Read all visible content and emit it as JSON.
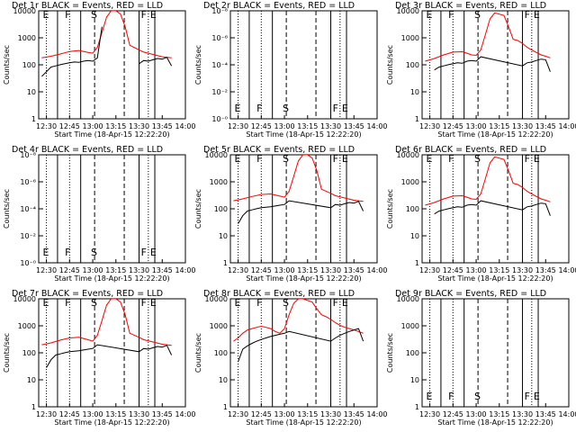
{
  "chart_data": [
    {
      "type": "line",
      "title": "Det 1r BLACK = Events, RED = LLD",
      "xlabel": "Start Time (18-Apr-15 12:22:20)",
      "ylabel": "Counts/sec",
      "x_ticks": [
        "12:30",
        "12:45",
        "13:00",
        "13:15",
        "13:30",
        "13:45",
        "14:00"
      ],
      "y_ticks": [
        "1",
        "10",
        "100",
        "1000",
        "10000"
      ],
      "ylim": [
        1,
        12000
      ],
      "scale": "log",
      "markers": [
        "E",
        "F",
        "S",
        "F",
        "E"
      ],
      "series": [
        {
          "name": "LLD",
          "color": "#ff0000",
          "x": [
            12.45,
            12.55,
            12.65,
            12.75,
            12.85,
            12.95,
            13.0,
            13.05,
            13.1,
            13.15,
            13.2,
            13.25,
            13.3,
            13.35,
            13.4,
            13.5,
            13.55,
            13.65,
            13.75,
            13.85
          ],
          "y": [
            200,
            230,
            280,
            350,
            380,
            320,
            300,
            500,
            1800,
            7000,
            12000,
            12000,
            9000,
            3000,
            600,
            400,
            330,
            270,
            220,
            200
          ]
        },
        {
          "name": "Events",
          "color": "#000000",
          "x": [
            12.45,
            12.5,
            12.55,
            12.6,
            12.65,
            12.7,
            12.75,
            12.8,
            12.85,
            12.9,
            12.95,
            13.0,
            13.05,
            13.1,
            13.15,
            13.2,
            13.25,
            13.3,
            13.35,
            13.4,
            13.45,
            13.5,
            13.55,
            13.6,
            13.65,
            13.7,
            13.75,
            13.8,
            13.85
          ],
          "y": [
            40,
            60,
            90,
            100,
            110,
            120,
            130,
            140,
            135,
            150,
            160,
            150,
            200,
            3000,
            null,
            null,
            null,
            null,
            null,
            null,
            null,
            120,
            160,
            150,
            170,
            190,
            180,
            210,
            100
          ]
        }
      ]
    },
    {
      "type": "line",
      "title": "Det 2r BLACK = Events, RED = LLD",
      "xlabel": "Start Time (18-Apr-15 12:22:20)",
      "ylabel": "Counts/sec",
      "x_ticks": [
        "12:30",
        "12:45",
        "13:00",
        "13:15",
        "13:30",
        "13:45",
        "14:00"
      ],
      "y_ticks": [
        "10⁻⁰",
        "10⁻²",
        "10⁻⁴",
        "10⁻⁶",
        "10⁻⁸"
      ],
      "scale": "log",
      "markers": [
        "E",
        "F",
        "S",
        "F",
        "E"
      ],
      "series": []
    },
    {
      "type": "line",
      "title": "Det 3r BLACK = Events, RED = LLD",
      "xlabel": "Start Time (18-Apr-15 12:22:20)",
      "ylabel": "Counts/sec",
      "x_ticks": [
        "12:30",
        "12:45",
        "13:00",
        "13:15",
        "13:30",
        "13:45",
        "14:00"
      ],
      "y_ticks": [
        "1",
        "10",
        "100",
        "1000",
        "10000"
      ],
      "ylim": [
        1,
        12000
      ],
      "scale": "log",
      "markers": [
        "E",
        "F",
        "S",
        "F",
        "E"
      ],
      "series": [
        {
          "name": "LLD",
          "color": "#ff0000",
          "x": [
            12.45,
            12.55,
            12.65,
            12.75,
            12.85,
            12.9,
            12.95,
            13.0,
            13.05,
            13.1,
            13.15,
            13.2,
            13.3,
            13.35,
            13.4,
            13.45,
            13.5,
            13.55,
            13.6,
            13.65,
            13.7,
            13.75,
            13.8
          ],
          "y": [
            150,
            190,
            260,
            330,
            340,
            300,
            260,
            250,
            400,
            1500,
            6000,
            10000,
            8000,
            3000,
            1000,
            900,
            700,
            500,
            400,
            320,
            260,
            230,
            200
          ]
        },
        {
          "name": "Events",
          "color": "#000000",
          "x": [
            12.55,
            12.6,
            12.65,
            12.7,
            12.75,
            12.8,
            12.85,
            12.9,
            12.95,
            13.0,
            13.05,
            13.5,
            13.55,
            13.6,
            13.65,
            13.7,
            13.75,
            13.8
          ],
          "y": [
            70,
            90,
            100,
            110,
            120,
            130,
            125,
            150,
            160,
            150,
            220,
            100,
            130,
            140,
            160,
            180,
            170,
            60
          ]
        }
      ]
    },
    {
      "type": "line",
      "title": "Det 4r BLACK = Events, RED = LLD",
      "xlabel": "Start Time (18-Apr-15 12:22:20)",
      "ylabel": "Counts/sec",
      "x_ticks": [
        "12:30",
        "12:45",
        "13:00",
        "13:15",
        "13:30",
        "13:45",
        "14:00"
      ],
      "y_ticks": [
        "10⁻⁰",
        "10⁻²",
        "10⁻⁴",
        "10⁻⁶",
        "10⁻⁸"
      ],
      "scale": "log",
      "markers": [
        "E",
        "F",
        "S",
        "F",
        "E"
      ],
      "series": []
    },
    {
      "type": "line",
      "title": "Det 5r BLACK = Events, RED = LLD",
      "xlabel": "Start Time (18-Apr-15 12:22:20)",
      "ylabel": "Counts/sec",
      "x_ticks": [
        "12:30",
        "12:45",
        "13:00",
        "13:15",
        "13:30",
        "13:45",
        "14:00"
      ],
      "y_ticks": [
        "1",
        "10",
        "100",
        "1000",
        "10000"
      ],
      "ylim": [
        1,
        12000
      ],
      "scale": "log",
      "markers": [
        "E",
        "F",
        "S",
        "F",
        "E"
      ],
      "series": [
        {
          "name": "LLD",
          "color": "#ff0000",
          "x": [
            12.45,
            12.55,
            12.65,
            12.75,
            12.85,
            12.95,
            13.0,
            13.05,
            13.1,
            13.15,
            13.2,
            13.25,
            13.3,
            13.35,
            13.4,
            13.5,
            13.55,
            13.65,
            13.75,
            13.85
          ],
          "y": [
            220,
            260,
            320,
            380,
            400,
            330,
            300,
            500,
            1800,
            7000,
            12000,
            12000,
            9000,
            3000,
            600,
            420,
            340,
            280,
            230,
            210
          ]
        },
        {
          "name": "Events",
          "color": "#000000",
          "x": [
            12.5,
            12.55,
            12.6,
            12.65,
            12.7,
            12.75,
            12.8,
            12.85,
            12.9,
            12.95,
            13.0,
            13.05,
            13.5,
            13.55,
            13.6,
            13.65,
            13.7,
            13.75,
            13.8,
            13.85
          ],
          "y": [
            30,
            60,
            90,
            100,
            110,
            120,
            125,
            130,
            140,
            150,
            160,
            220,
            120,
            160,
            150,
            170,
            190,
            180,
            210,
            90
          ]
        }
      ]
    },
    {
      "type": "line",
      "title": "Det 6r BLACK = Events, RED = LLD",
      "xlabel": "Start Time (18-Apr-15 12:22:20)",
      "ylabel": "Counts/sec",
      "x_ticks": [
        "12:30",
        "12:45",
        "13:00",
        "13:15",
        "13:30",
        "13:45",
        "14:00"
      ],
      "y_ticks": [
        "1",
        "10",
        "100",
        "1000",
        "10000"
      ],
      "ylim": [
        1,
        12000
      ],
      "scale": "log",
      "markers": [
        "E",
        "F",
        "S",
        "F",
        "E"
      ],
      "series": [
        {
          "name": "LLD",
          "color": "#ff0000",
          "x": [
            12.45,
            12.55,
            12.65,
            12.75,
            12.85,
            12.9,
            12.95,
            13.0,
            13.05,
            13.1,
            13.15,
            13.2,
            13.3,
            13.35,
            13.4,
            13.45,
            13.5,
            13.55,
            13.6,
            13.65,
            13.7,
            13.75,
            13.8
          ],
          "y": [
            150,
            190,
            260,
            330,
            340,
            300,
            260,
            250,
            400,
            1500,
            6000,
            10000,
            8000,
            3000,
            1000,
            900,
            700,
            500,
            400,
            320,
            260,
            230,
            200
          ]
        },
        {
          "name": "Events",
          "color": "#000000",
          "x": [
            12.55,
            12.6,
            12.65,
            12.7,
            12.75,
            12.8,
            12.85,
            12.9,
            12.95,
            13.0,
            13.05,
            13.5,
            13.55,
            13.6,
            13.65,
            13.7,
            13.75,
            13.8
          ],
          "y": [
            70,
            90,
            100,
            110,
            120,
            130,
            125,
            150,
            160,
            150,
            220,
            100,
            130,
            140,
            160,
            180,
            170,
            60
          ]
        }
      ]
    },
    {
      "type": "line",
      "title": "Det 7r BLACK = Events, RED = LLD",
      "xlabel": "Start Time (18-Apr-15 12:22:20)",
      "ylabel": "Counts/sec",
      "x_ticks": [
        "12:30",
        "12:45",
        "13:00",
        "13:15",
        "13:30",
        "13:45",
        "14:00"
      ],
      "y_ticks": [
        "1",
        "10",
        "100",
        "1000",
        "10000"
      ],
      "ylim": [
        1,
        12000
      ],
      "scale": "log",
      "markers": [
        "E",
        "F",
        "S",
        "F",
        "E"
      ],
      "series": [
        {
          "name": "LLD",
          "color": "#ff0000",
          "x": [
            12.45,
            12.55,
            12.65,
            12.75,
            12.85,
            12.95,
            13.0,
            13.05,
            13.1,
            13.15,
            13.2,
            13.25,
            13.3,
            13.35,
            13.4,
            13.5,
            13.55,
            13.65,
            13.75,
            13.85
          ],
          "y": [
            220,
            260,
            330,
            400,
            420,
            340,
            300,
            500,
            1800,
            7000,
            12000,
            12000,
            9000,
            3000,
            600,
            420,
            340,
            280,
            230,
            210
          ]
        },
        {
          "name": "Events",
          "color": "#000000",
          "x": [
            12.5,
            12.55,
            12.6,
            12.65,
            12.7,
            12.75,
            12.8,
            12.85,
            12.9,
            12.95,
            13.0,
            13.05,
            13.5,
            13.55,
            13.6,
            13.65,
            13.7,
            13.75,
            13.8,
            13.85
          ],
          "y": [
            30,
            60,
            90,
            100,
            110,
            120,
            125,
            130,
            140,
            150,
            160,
            220,
            120,
            160,
            150,
            170,
            190,
            180,
            210,
            90
          ]
        }
      ]
    },
    {
      "type": "line",
      "title": "Det 8r BLACK = Events, RED = LLD",
      "xlabel": "Start Time (18-Apr-15 12:22:20)",
      "ylabel": "Counts/sec",
      "x_ticks": [
        "12:30",
        "12:45",
        "13:00",
        "13:15",
        "13:30",
        "13:45",
        "14:00"
      ],
      "y_ticks": [
        "1",
        "10",
        "100",
        "1000",
        "10000"
      ],
      "ylim": [
        1,
        12000
      ],
      "scale": "log",
      "markers": [
        "E",
        "F",
        "S",
        "F",
        "E"
      ],
      "series": [
        {
          "name": "LLD",
          "color": "#ff0000",
          "x": [
            12.45,
            12.5,
            12.55,
            12.6,
            12.65,
            12.7,
            12.75,
            12.8,
            12.85,
            12.9,
            12.95,
            13.0,
            13.05,
            13.1,
            13.15,
            13.2,
            13.3,
            13.35,
            13.4,
            13.45,
            13.5,
            13.55,
            13.6,
            13.65,
            13.7,
            13.75,
            13.8,
            13.85
          ],
          "y": [
            300,
            400,
            600,
            800,
            900,
            1000,
            1100,
            1000,
            900,
            700,
            600,
            900,
            3000,
            8000,
            12000,
            12000,
            9000,
            5000,
            3000,
            2500,
            2000,
            1500,
            1200,
            1000,
            900,
            800,
            700,
            600
          ]
        },
        {
          "name": "Events",
          "color": "#000000",
          "x": [
            12.5,
            12.55,
            12.6,
            12.65,
            12.7,
            12.75,
            12.8,
            12.85,
            12.9,
            12.95,
            13.0,
            13.05,
            13.5,
            13.55,
            13.6,
            13.65,
            13.7,
            13.75,
            13.8,
            13.85
          ],
          "y": [
            50,
            150,
            200,
            250,
            300,
            350,
            400,
            450,
            500,
            550,
            600,
            700,
            300,
            400,
            500,
            600,
            700,
            800,
            900,
            300
          ]
        }
      ]
    },
    {
      "type": "line",
      "title": "Det 9r BLACK = Events, RED = LLD",
      "xlabel": "Start Time (18-Apr-15 12:22:20)",
      "ylabel": "Counts/sec",
      "x_ticks": [
        "12:30",
        "12:45",
        "13:00",
        "13:15",
        "13:30",
        "13:45",
        "14:00"
      ],
      "y_ticks": [
        "1",
        "10",
        "100",
        "1000",
        "10000"
      ],
      "ylim": [
        1,
        12000
      ],
      "scale": "log",
      "markers": [
        "E",
        "F",
        "S",
        "F",
        "E"
      ],
      "series": []
    }
  ]
}
